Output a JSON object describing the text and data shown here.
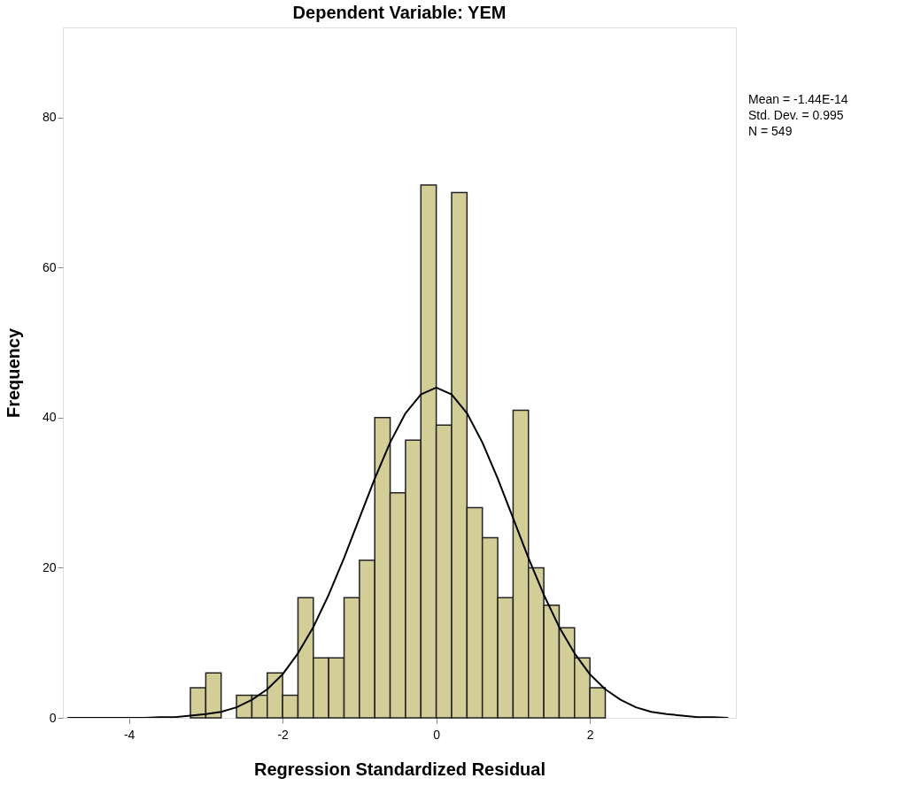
{
  "chart_data": {
    "type": "histogram",
    "title": "Dependent Variable: YEM",
    "xlabel": "Regression Standardized Residual",
    "ylabel": "Frequency",
    "bins": [
      -3.2,
      -3.0,
      -2.8,
      -2.6,
      -2.4,
      -2.2,
      -2.0,
      -1.8,
      -1.6,
      -1.4,
      -1.2,
      -1.0,
      -0.8,
      -0.6,
      -0.4,
      -0.2,
      0.0,
      0.2,
      0.4,
      0.6,
      0.8,
      1.0,
      1.2,
      1.4,
      1.6,
      1.8,
      2.0,
      2.2
    ],
    "values": [
      4,
      6,
      0,
      3,
      3,
      6,
      3,
      16,
      8,
      8,
      16,
      21,
      40,
      30,
      37,
      71,
      39,
      70,
      28,
      24,
      16,
      41,
      20,
      15,
      12,
      8,
      4
    ],
    "color": "#d3ce97",
    "series": [
      {
        "type": "line",
        "color": "#000000",
        "x": [
          -4.8,
          -4.6,
          -4.4,
          -4.2,
          -4.0,
          -3.8,
          -3.6,
          -3.4,
          -3.2,
          -3.0,
          -2.8,
          -2.6,
          -2.4,
          -2.2,
          -2.0,
          -1.8,
          -1.6,
          -1.4,
          -1.2,
          -1.0,
          -0.8,
          -0.6,
          -0.4,
          -0.2,
          0.0,
          0.2,
          0.4,
          0.6,
          0.8,
          1.0,
          1.2,
          1.4,
          1.6,
          1.8,
          2.0,
          2.2,
          2.4,
          2.6,
          2.8,
          3.0,
          3.2,
          3.4,
          3.6,
          3.8
        ],
        "values": [
          0,
          0,
          0,
          0,
          0,
          0,
          0.1,
          0.1,
          0.3,
          0.5,
          0.8,
          1.4,
          2.4,
          3.8,
          5.8,
          8.6,
          12.1,
          16.4,
          21.3,
          26.6,
          31.9,
          36.7,
          40.6,
          43.1,
          44.0,
          43.1,
          40.6,
          36.7,
          31.9,
          26.6,
          21.3,
          16.4,
          12.1,
          8.6,
          5.8,
          3.8,
          2.4,
          1.4,
          0.8,
          0.5,
          0.3,
          0.1,
          0.1,
          0
        ]
      }
    ],
    "xlim": [
      -4.86,
      3.9
    ],
    "ylim": [
      0,
      92
    ],
    "xticks": [
      -4,
      -2,
      0,
      2
    ],
    "yticks": [
      0,
      20,
      40,
      60,
      80
    ],
    "grid": false,
    "legend": false,
    "annotations": [
      "Mean = -1.44E-14",
      "Std. Dev. = 0.995",
      "N = 549"
    ]
  }
}
